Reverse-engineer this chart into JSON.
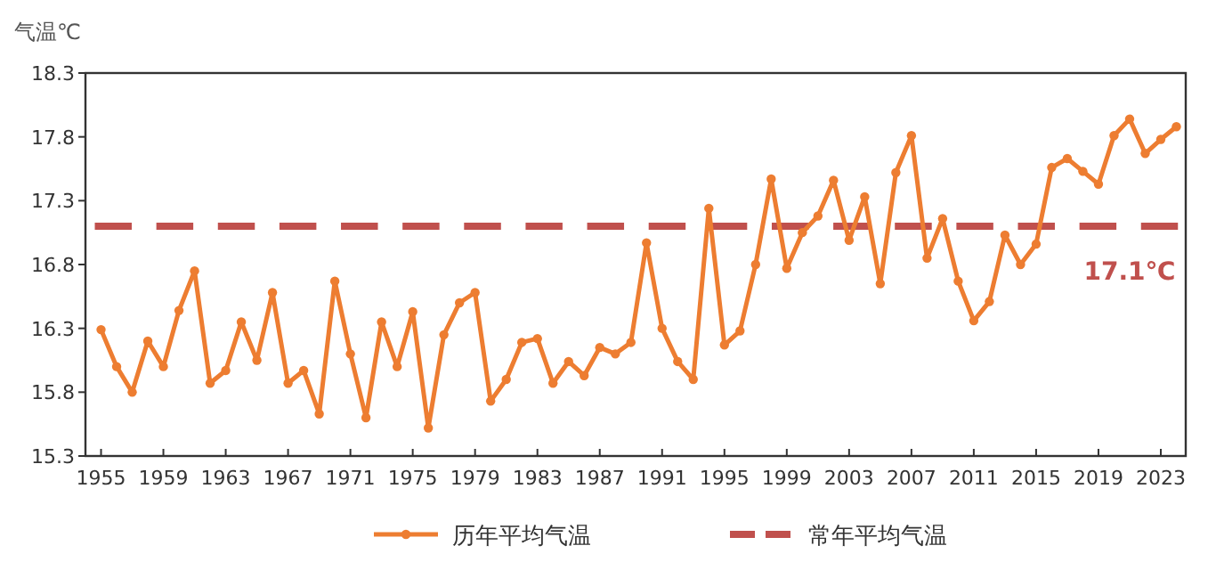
{
  "chart_data": {
    "type": "line",
    "ylabel": "气温℃",
    "x": [
      1955,
      1956,
      1957,
      1958,
      1959,
      1960,
      1961,
      1962,
      1963,
      1964,
      1965,
      1966,
      1967,
      1968,
      1969,
      1970,
      1971,
      1972,
      1973,
      1974,
      1975,
      1976,
      1977,
      1978,
      1979,
      1980,
      1981,
      1982,
      1983,
      1984,
      1985,
      1986,
      1987,
      1988,
      1989,
      1990,
      1991,
      1992,
      1993,
      1994,
      1995,
      1996,
      1997,
      1998,
      1999,
      2000,
      2001,
      2002,
      2003,
      2004,
      2005,
      2006,
      2007,
      2008,
      2009,
      2010,
      2011,
      2012,
      2013,
      2014,
      2015,
      2016,
      2017,
      2018,
      2019,
      2020,
      2021,
      2022,
      2023,
      2024
    ],
    "series": [
      {
        "name": "历年平均气温",
        "color": "#ed7d31",
        "values": [
          16.29,
          16.0,
          15.8,
          16.2,
          16.0,
          16.44,
          16.75,
          15.87,
          15.97,
          16.35,
          16.05,
          16.58,
          15.87,
          15.97,
          15.63,
          16.67,
          16.1,
          15.6,
          16.35,
          16.0,
          16.43,
          15.52,
          16.25,
          16.5,
          16.58,
          15.73,
          15.9,
          16.19,
          16.22,
          15.87,
          16.04,
          15.93,
          16.15,
          16.1,
          16.19,
          16.97,
          16.3,
          16.04,
          15.9,
          17.24,
          16.17,
          16.28,
          16.8,
          17.47,
          16.77,
          17.05,
          17.18,
          17.46,
          16.99,
          17.33,
          16.65,
          17.52,
          17.81,
          16.85,
          17.16,
          16.67,
          16.36,
          16.51,
          17.03,
          16.8,
          16.96,
          17.56,
          17.63,
          17.53,
          17.43,
          17.81,
          17.94,
          17.67,
          17.78,
          17.88
        ]
      },
      {
        "name": "常年平均气温",
        "color": "#c0504d",
        "x": [
          1954.6,
          2024.1
        ],
        "values": [
          17.1,
          17.1
        ],
        "line_style": "dashed",
        "marker": "none"
      }
    ],
    "annotations": [
      {
        "text": "17.1℃",
        "x": 2021,
        "y": 17.1
      }
    ],
    "xlim": [
      1954,
      2024.6
    ],
    "xticks": [
      1955,
      1959,
      1963,
      1967,
      1971,
      1975,
      1979,
      1983,
      1987,
      1991,
      1995,
      1999,
      2003,
      2007,
      2011,
      2015,
      2019,
      2023
    ],
    "ylim": [
      15.3,
      18.3
    ],
    "yticks": [
      15.3,
      15.8,
      16.3,
      16.8,
      17.3,
      17.8,
      18.3
    ],
    "marker": "circle",
    "line_style": "solid",
    "grid": false,
    "legend": "bottom"
  }
}
